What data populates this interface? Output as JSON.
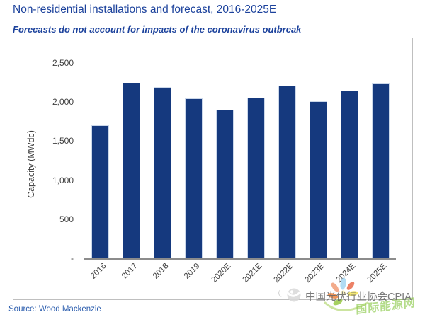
{
  "header": {
    "title": "Non-residential installations and forecast, 2016-2025E",
    "subtitle": "Forecasts do not account for impacts of the coronavirus outbreak"
  },
  "footer": {
    "source": "Source: Wood Mackenzie"
  },
  "watermark": {
    "cpia_text": "中国光伏行业协会CPIA",
    "energy_text": "国际能源网"
  },
  "colors": {
    "title_blue": "#1c429c",
    "bar_navy": "#15397e",
    "axis_gray": "#a6a6a6",
    "tick_text": "#404040",
    "source_blue": "#2a5cad",
    "watermark_green": "#86c642",
    "watermark_gray": "#8a8a8a",
    "chart_border_gray": "#bfbfbf"
  },
  "chart_data": {
    "type": "bar",
    "title": "Non-residential installations and forecast, 2016-2025E",
    "categories": [
      "2016",
      "2017",
      "2018",
      "2019",
      "2020E",
      "2021E",
      "2022E",
      "2023E",
      "2024E",
      "2025E"
    ],
    "values": [
      1700,
      2250,
      2190,
      2050,
      1900,
      2060,
      2210,
      2010,
      2150,
      2240
    ],
    "xlabel": "",
    "ylabel": "Capacity (MWdc)",
    "ylim": [
      0,
      2500
    ],
    "ytick_values": [
      0,
      500,
      1000,
      1500,
      2000,
      2500
    ],
    "ytick_labels": [
      "-",
      "500",
      "1,000",
      "1,500",
      "2,000",
      "2,500"
    ],
    "grid": false,
    "legend": "none",
    "bar_color": "#15397e"
  }
}
